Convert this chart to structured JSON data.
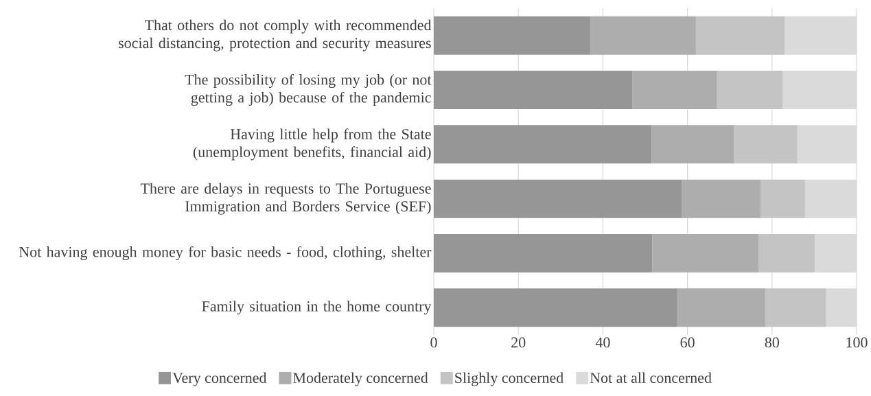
{
  "chart_data": {
    "type": "bar",
    "orientation": "horizontal",
    "stacked": true,
    "categories": [
      "That others do not comply with recommended social distancing, protection and security measures",
      "The possibility of losing my job (or not getting a job) because of the pandemic",
      "Having little help from the State (unemployment benefits, financial aid)",
      "There are delays in requests to The Portuguese Immigration and Borders Service (SEF)",
      "Not having enough money for basic needs - food, clothing, shelter",
      "Family situation in the home country"
    ],
    "series": [
      {
        "name": "Very concerned",
        "color": "#969696",
        "values": [
          37,
          47,
          51.5,
          58.7,
          51.7,
          57.6
        ]
      },
      {
        "name": "Moderately concerned",
        "color": "#adadad",
        "values": [
          25,
          20,
          19.5,
          18.6,
          25.1,
          20.9
        ]
      },
      {
        "name": "Slighly concerned",
        "color": "#c4c4c4",
        "values": [
          21,
          15.5,
          15,
          10.5,
          13.3,
          14.3
        ]
      },
      {
        "name": "Not at all concerned",
        "color": "#dadada",
        "values": [
          17,
          17.5,
          14,
          12.2,
          9.9,
          7.2
        ]
      }
    ],
    "xlim": [
      0,
      100
    ],
    "xticks": [
      0,
      20,
      40,
      60,
      80,
      100
    ],
    "grid": "x",
    "legend": "bottom"
  }
}
